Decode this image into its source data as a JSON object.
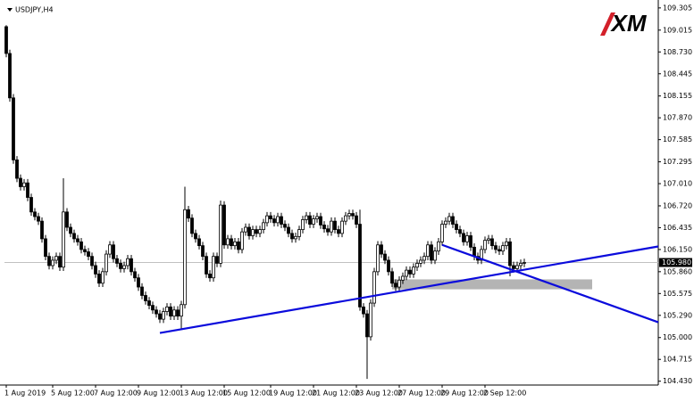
{
  "chart_data": {
    "type": "candlestick",
    "title": "USDJPY,H4",
    "logo": "XM",
    "categories": [
      "1 Aug 2019",
      null,
      null,
      null,
      null,
      null,
      null,
      null,
      null,
      null,
      null,
      null,
      null,
      "5 Aug 12:00",
      null,
      null,
      null,
      null,
      null,
      null,
      null,
      null,
      null,
      null,
      null,
      "7 Aug 12:00",
      null,
      null,
      null,
      null,
      null,
      null,
      null,
      null,
      null,
      null,
      null,
      "9 Aug 12:00",
      null,
      null,
      null,
      null,
      null,
      null,
      null,
      null,
      null,
      null,
      null,
      "13 Aug 12:00",
      null,
      null,
      null,
      null,
      null,
      null,
      null,
      null,
      null,
      null,
      null,
      "15 Aug 12:00",
      null,
      null,
      null,
      null,
      null,
      null,
      null,
      null,
      null,
      null,
      null,
      null,
      "19 Aug 12:00",
      null,
      null,
      null,
      null,
      null,
      null,
      null,
      null,
      null,
      null,
      null,
      "21 Aug 12:00",
      null,
      null,
      null,
      null,
      null,
      null,
      null,
      null,
      null,
      null,
      null,
      "23 Aug 12:00",
      null,
      null,
      null,
      null,
      null,
      null,
      null,
      null,
      null,
      null,
      null,
      "27 Aug 12:00",
      null,
      null,
      null,
      null,
      null,
      null,
      null,
      null,
      null,
      null,
      null,
      "29 Aug 12:00",
      null,
      null,
      null,
      null,
      null,
      null,
      null,
      null,
      null,
      null,
      null,
      "2 Sep 12:00",
      null,
      null,
      null,
      null,
      null,
      null,
      null,
      null,
      null,
      null,
      null
    ],
    "open": [
      109.06,
      108.71,
      108.13,
      107.32,
      107.08,
      106.97,
      107.02,
      106.83,
      106.64,
      106.58,
      106.52,
      106.29,
      106.06,
      105.94,
      106.01,
      106.06,
      105.92,
      106.64,
      106.44,
      106.36,
      106.29,
      106.25,
      106.15,
      106.12,
      106.06,
      105.94,
      105.83,
      105.71,
      105.86,
      106.09,
      106.21,
      106.03,
      105.97,
      105.9,
      105.94,
      106.03,
      105.86,
      105.78,
      105.66,
      105.55,
      105.48,
      105.42,
      105.36,
      105.31,
      105.24,
      105.34,
      105.4,
      105.28,
      105.36,
      105.28,
      105.43,
      106.67,
      106.56,
      106.36,
      106.29,
      106.2,
      106.06,
      105.83,
      105.78,
      106.06,
      105.97,
      106.73,
      106.21,
      106.29,
      106.2,
      106.25,
      106.15,
      106.38,
      106.44,
      106.33,
      106.41,
      106.36,
      106.41,
      106.5,
      106.59,
      106.55,
      106.5,
      106.58,
      106.48,
      106.44,
      106.36,
      106.29,
      106.32,
      106.41,
      106.54,
      106.59,
      106.48,
      106.55,
      106.58,
      106.47,
      106.42,
      106.38,
      106.52,
      106.41,
      106.36,
      106.52,
      106.59,
      106.62,
      106.59,
      106.48,
      105.4,
      105.31,
      105.01,
      105.45,
      105.86,
      106.21,
      106.09,
      106.01,
      105.86,
      105.71,
      105.66,
      105.75,
      105.8,
      105.88,
      105.83,
      105.92,
      105.97,
      106.01,
      106.06,
      106.21,
      106.01,
      106.13,
      106.25,
      106.48,
      106.52,
      106.58,
      106.48,
      106.41,
      106.36,
      106.25,
      106.33,
      106.18,
      106.06,
      106.01,
      106.15,
      106.27,
      106.29,
      106.2,
      106.15,
      106.13,
      106.2,
      106.25,
      105.94,
      105.9,
      105.94,
      105.97
    ],
    "high": [
      109.08,
      108.76,
      108.18,
      107.37,
      107.13,
      107.07,
      107.07,
      106.88,
      106.69,
      106.63,
      106.57,
      106.34,
      106.11,
      106.06,
      106.11,
      106.11,
      107.08,
      106.69,
      106.49,
      106.41,
      106.34,
      106.3,
      106.2,
      106.17,
      106.11,
      105.99,
      105.88,
      105.91,
      106.14,
      106.26,
      106.26,
      106.08,
      106.02,
      105.99,
      106.08,
      106.08,
      105.91,
      105.83,
      105.71,
      105.6,
      105.53,
      105.47,
      105.41,
      105.36,
      105.39,
      105.45,
      105.45,
      105.41,
      105.41,
      105.48,
      106.97,
      106.72,
      106.61,
      106.41,
      106.34,
      106.25,
      106.11,
      105.88,
      106.11,
      106.11,
      106.79,
      106.78,
      106.34,
      106.34,
      106.3,
      106.3,
      106.43,
      106.49,
      106.49,
      106.46,
      106.46,
      106.46,
      106.55,
      106.64,
      106.64,
      106.6,
      106.63,
      106.63,
      106.53,
      106.49,
      106.41,
      106.37,
      106.46,
      106.59,
      106.64,
      106.64,
      106.6,
      106.63,
      106.63,
      106.52,
      106.47,
      106.57,
      106.57,
      106.46,
      106.57,
      106.64,
      106.67,
      106.67,
      106.64,
      106.67,
      105.45,
      105.36,
      105.5,
      105.91,
      106.26,
      106.26,
      106.14,
      106.06,
      105.91,
      105.76,
      105.8,
      105.85,
      105.93,
      105.93,
      105.97,
      106.02,
      106.06,
      106.11,
      106.26,
      106.26,
      106.18,
      106.3,
      106.53,
      106.57,
      106.63,
      106.63,
      106.53,
      106.46,
      106.41,
      106.38,
      106.38,
      106.23,
      106.11,
      106.2,
      106.32,
      106.34,
      106.34,
      106.25,
      106.2,
      106.25,
      106.3,
      106.3,
      105.99,
      105.99,
      106.02,
      106.03
    ],
    "low": [
      108.66,
      108.08,
      107.27,
      107.03,
      106.92,
      106.92,
      106.78,
      106.59,
      106.53,
      106.47,
      106.24,
      106.01,
      105.89,
      105.89,
      105.96,
      105.87,
      105.87,
      106.39,
      106.31,
      106.24,
      106.2,
      106.1,
      106.07,
      106.01,
      105.89,
      105.78,
      105.66,
      105.66,
      105.81,
      106.04,
      105.98,
      105.92,
      105.85,
      105.85,
      105.89,
      105.81,
      105.73,
      105.61,
      105.5,
      105.43,
      105.37,
      105.31,
      105.26,
      105.19,
      105.19,
      105.29,
      105.23,
      105.23,
      105.23,
      105.1,
      105.38,
      106.51,
      106.31,
      106.24,
      106.15,
      106.01,
      105.78,
      105.73,
      105.73,
      105.92,
      105.92,
      106.16,
      106.16,
      106.15,
      106.15,
      106.1,
      106.1,
      106.33,
      106.28,
      106.28,
      106.31,
      106.31,
      106.36,
      106.45,
      106.5,
      106.45,
      106.45,
      106.43,
      106.39,
      106.31,
      106.24,
      106.24,
      106.27,
      106.36,
      106.49,
      106.43,
      106.43,
      106.5,
      106.42,
      106.37,
      106.33,
      106.33,
      106.36,
      106.31,
      106.31,
      106.47,
      106.54,
      106.54,
      106.43,
      105.35,
      105.26,
      104.46,
      104.96,
      105.4,
      105.81,
      106.04,
      105.96,
      105.81,
      105.66,
      105.61,
      105.61,
      105.7,
      105.75,
      105.78,
      105.78,
      105.87,
      105.92,
      105.96,
      106.01,
      105.96,
      105.96,
      106.08,
      106.2,
      106.43,
      106.47,
      106.43,
      106.36,
      106.31,
      106.2,
      106.2,
      106.13,
      106.01,
      105.96,
      105.96,
      106.1,
      106.22,
      106.15,
      106.1,
      106.08,
      106.08,
      106.15,
      105.8,
      105.85,
      105.85,
      105.89,
      105.92
    ],
    "close": [
      108.71,
      108.13,
      107.32,
      107.08,
      106.97,
      107.02,
      106.83,
      106.64,
      106.58,
      106.52,
      106.29,
      106.06,
      105.94,
      106.01,
      106.06,
      105.92,
      106.64,
      106.44,
      106.36,
      106.29,
      106.25,
      106.15,
      106.12,
      106.06,
      105.94,
      105.83,
      105.71,
      105.86,
      106.09,
      106.21,
      106.03,
      105.97,
      105.9,
      105.94,
      106.03,
      105.86,
      105.78,
      105.66,
      105.55,
      105.48,
      105.42,
      105.36,
      105.31,
      105.24,
      105.34,
      105.4,
      105.28,
      105.36,
      105.28,
      105.43,
      106.67,
      106.56,
      106.36,
      106.29,
      106.2,
      106.06,
      105.83,
      105.78,
      106.06,
      105.97,
      106.73,
      106.21,
      106.29,
      106.2,
      106.25,
      106.15,
      106.38,
      106.44,
      106.33,
      106.41,
      106.36,
      106.41,
      106.5,
      106.59,
      106.55,
      106.5,
      106.58,
      106.48,
      106.44,
      106.36,
      106.29,
      106.32,
      106.41,
      106.54,
      106.59,
      106.48,
      106.55,
      106.58,
      106.47,
      106.42,
      106.38,
      106.52,
      106.41,
      106.36,
      106.52,
      106.59,
      106.62,
      106.59,
      106.48,
      105.4,
      105.31,
      105.01,
      105.45,
      105.86,
      106.21,
      106.09,
      106.01,
      105.86,
      105.71,
      105.66,
      105.75,
      105.8,
      105.88,
      105.83,
      105.92,
      105.97,
      106.01,
      106.06,
      106.21,
      106.01,
      106.13,
      106.25,
      106.48,
      106.52,
      106.58,
      106.48,
      106.41,
      106.36,
      106.25,
      106.33,
      106.18,
      106.06,
      106.01,
      106.15,
      106.27,
      106.29,
      106.2,
      106.15,
      106.13,
      106.2,
      106.25,
      105.94,
      105.9,
      105.94,
      105.97,
      105.98
    ],
    "up_color": "#ffffff",
    "down_color": "#000000",
    "xlim": [
      -0.5,
      182.5
    ],
    "ylim": [
      104.38,
      109.35
    ],
    "yticks": [
      109.305,
      109.015,
      {
        "value": 108.73,
        "label": "108.730"
      },
      108.445,
      108.155,
      {
        "value": 107.87,
        "label": "107.870"
      },
      107.585,
      107.295,
      {
        "value": 107.01,
        "label": "107.010"
      },
      {
        "value": 106.72,
        "label": "106.720"
      },
      106.435,
      {
        "value": 106.15,
        "label": "106.150"
      },
      {
        "value": 105.86,
        "label": "105.860"
      },
      105.575,
      {
        "value": 105.29,
        "label": "105.290"
      },
      {
        "value": 105.0,
        "label": "105.000"
      },
      104.715,
      {
        "value": 104.43,
        "label": "104.430"
      }
    ],
    "current_price": {
      "value": 105.98,
      "label": "105.980"
    },
    "trendlines": [
      {
        "color": "#0b0bdc",
        "x": [
          43,
          182.5
        ],
        "y": [
          105.06,
          106.19
        ]
      },
      {
        "color": "#0b0bdc",
        "x": [
          122,
          182.5
        ],
        "y": [
          106.21,
          105.2
        ]
      }
    ],
    "zone": {
      "color": "#b4b4b4",
      "x": [
        108,
        164
      ],
      "y": [
        105.76,
        105.63
      ]
    }
  }
}
